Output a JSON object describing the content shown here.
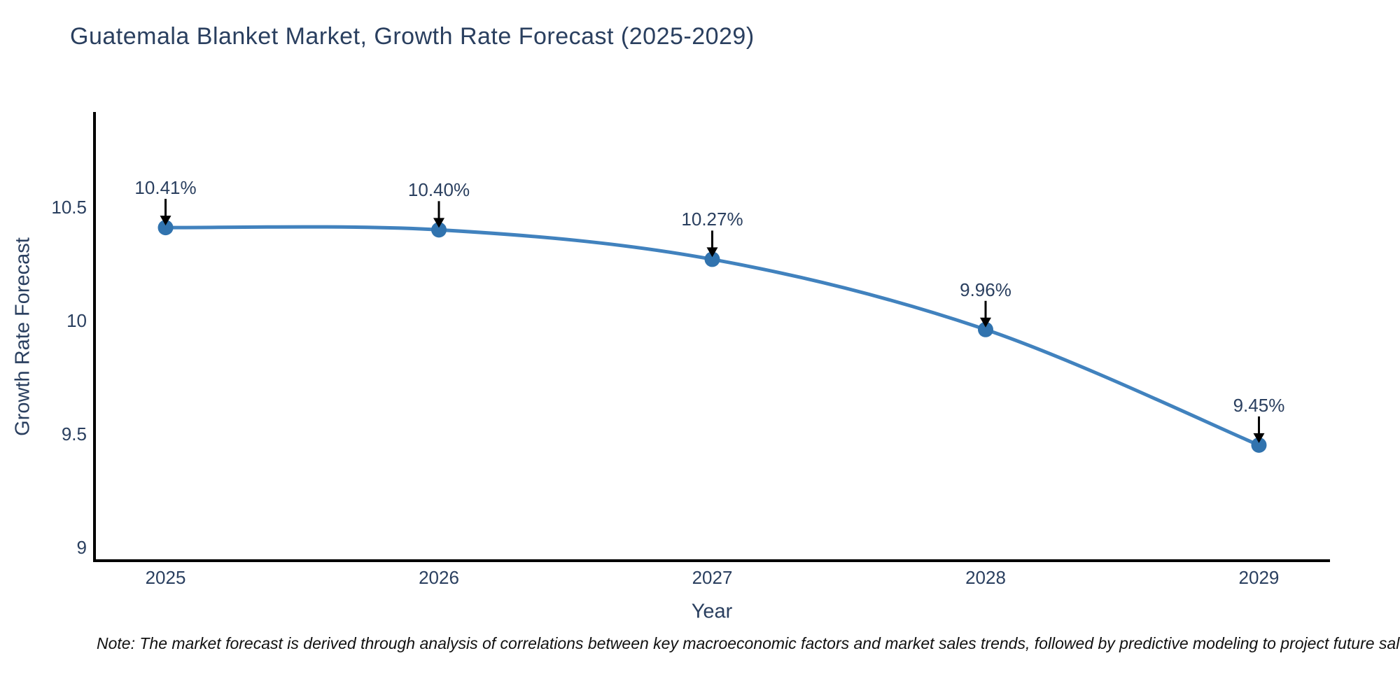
{
  "note": {
    "text": "Note: The market forecast is derived through analysis of correlations between key macroeconomic factors and market sales trends, followed by predictive modeling to project future sales."
  },
  "chart_data": {
    "type": "line",
    "title": "Guatemala Blanket Market, Growth Rate Forecast (2025-2029)",
    "xlabel": "Year",
    "ylabel": "Growth Rate Forecast",
    "x": [
      2025,
      2026,
      2027,
      2028,
      2029
    ],
    "series": [
      {
        "name": "Growth Rate Forecast",
        "values": [
          10.41,
          10.4,
          10.27,
          9.96,
          9.45
        ]
      }
    ],
    "point_labels": [
      "10.41%",
      "10.40%",
      "10.27%",
      "9.96%",
      "9.45%"
    ],
    "xticks": {
      "values": [
        2025,
        2026,
        2027,
        2028,
        2029
      ],
      "labels": [
        "2025",
        "2026",
        "2027",
        "2028",
        "2029"
      ]
    },
    "yticks": {
      "values": [
        10.5,
        10.0,
        9.5,
        9.0
      ],
      "labels": [
        "10.5",
        "10",
        "9.5",
        "9"
      ]
    },
    "xlim": [
      2024.74,
      2029.26
    ],
    "ylim": [
      8.94,
      10.92
    ],
    "grid": false,
    "legend": "none",
    "line_shape": "spline",
    "annotations_have_arrows": true,
    "colors": {
      "background": "#ffffff",
      "line": "#4182be",
      "marker": "#3173ae",
      "axis": "#000000",
      "tick_text": "#2a3f5f",
      "title_text": "#2a3f5f",
      "annotation_text": "#2a3f5f",
      "annotation_arrow": "#000000",
      "note_text": "#111111"
    }
  }
}
